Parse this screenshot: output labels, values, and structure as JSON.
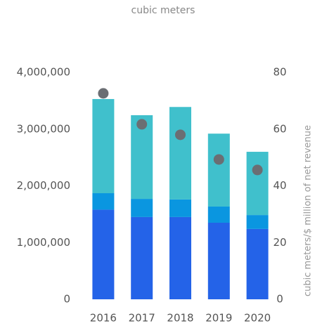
{
  "chart_data": {
    "type": "bar",
    "title": "cubic meters",
    "y2label": "cubic meters/$ million of net revenue",
    "categories": [
      "2016",
      "2017",
      "2018",
      "2019",
      "2020"
    ],
    "stacked": true,
    "series": [
      {
        "color": "#2463e8",
        "values": [
          1580000,
          1450000,
          1450000,
          1350000,
          1240000
        ]
      },
      {
        "color": "#0a96e0",
        "values": [
          290000,
          320000,
          310000,
          285000,
          245000
        ]
      },
      {
        "color": "#40c0cc",
        "values": [
          1660000,
          1475000,
          1630000,
          1285000,
          1115000
        ]
      },
      {
        "type": "scatter",
        "axis": "y2",
        "color": "#6b6e73",
        "values": [
          72.6,
          61.7,
          58.0,
          49.3,
          45.6
        ]
      }
    ],
    "ylim": [
      0,
      4000000
    ],
    "yticks": [
      0,
      {
        "value": 1000000,
        "label": "1,000,000"
      },
      {
        "value": 2000000,
        "label": "2,000,000"
      },
      {
        "value": 3000000,
        "label": "3,000,000"
      },
      {
        "value": 4000000,
        "label": "4,000,000"
      }
    ],
    "y2lim": [
      0,
      80
    ],
    "y2ticks": [
      0,
      20,
      40,
      60,
      80
    ],
    "grid": false
  }
}
